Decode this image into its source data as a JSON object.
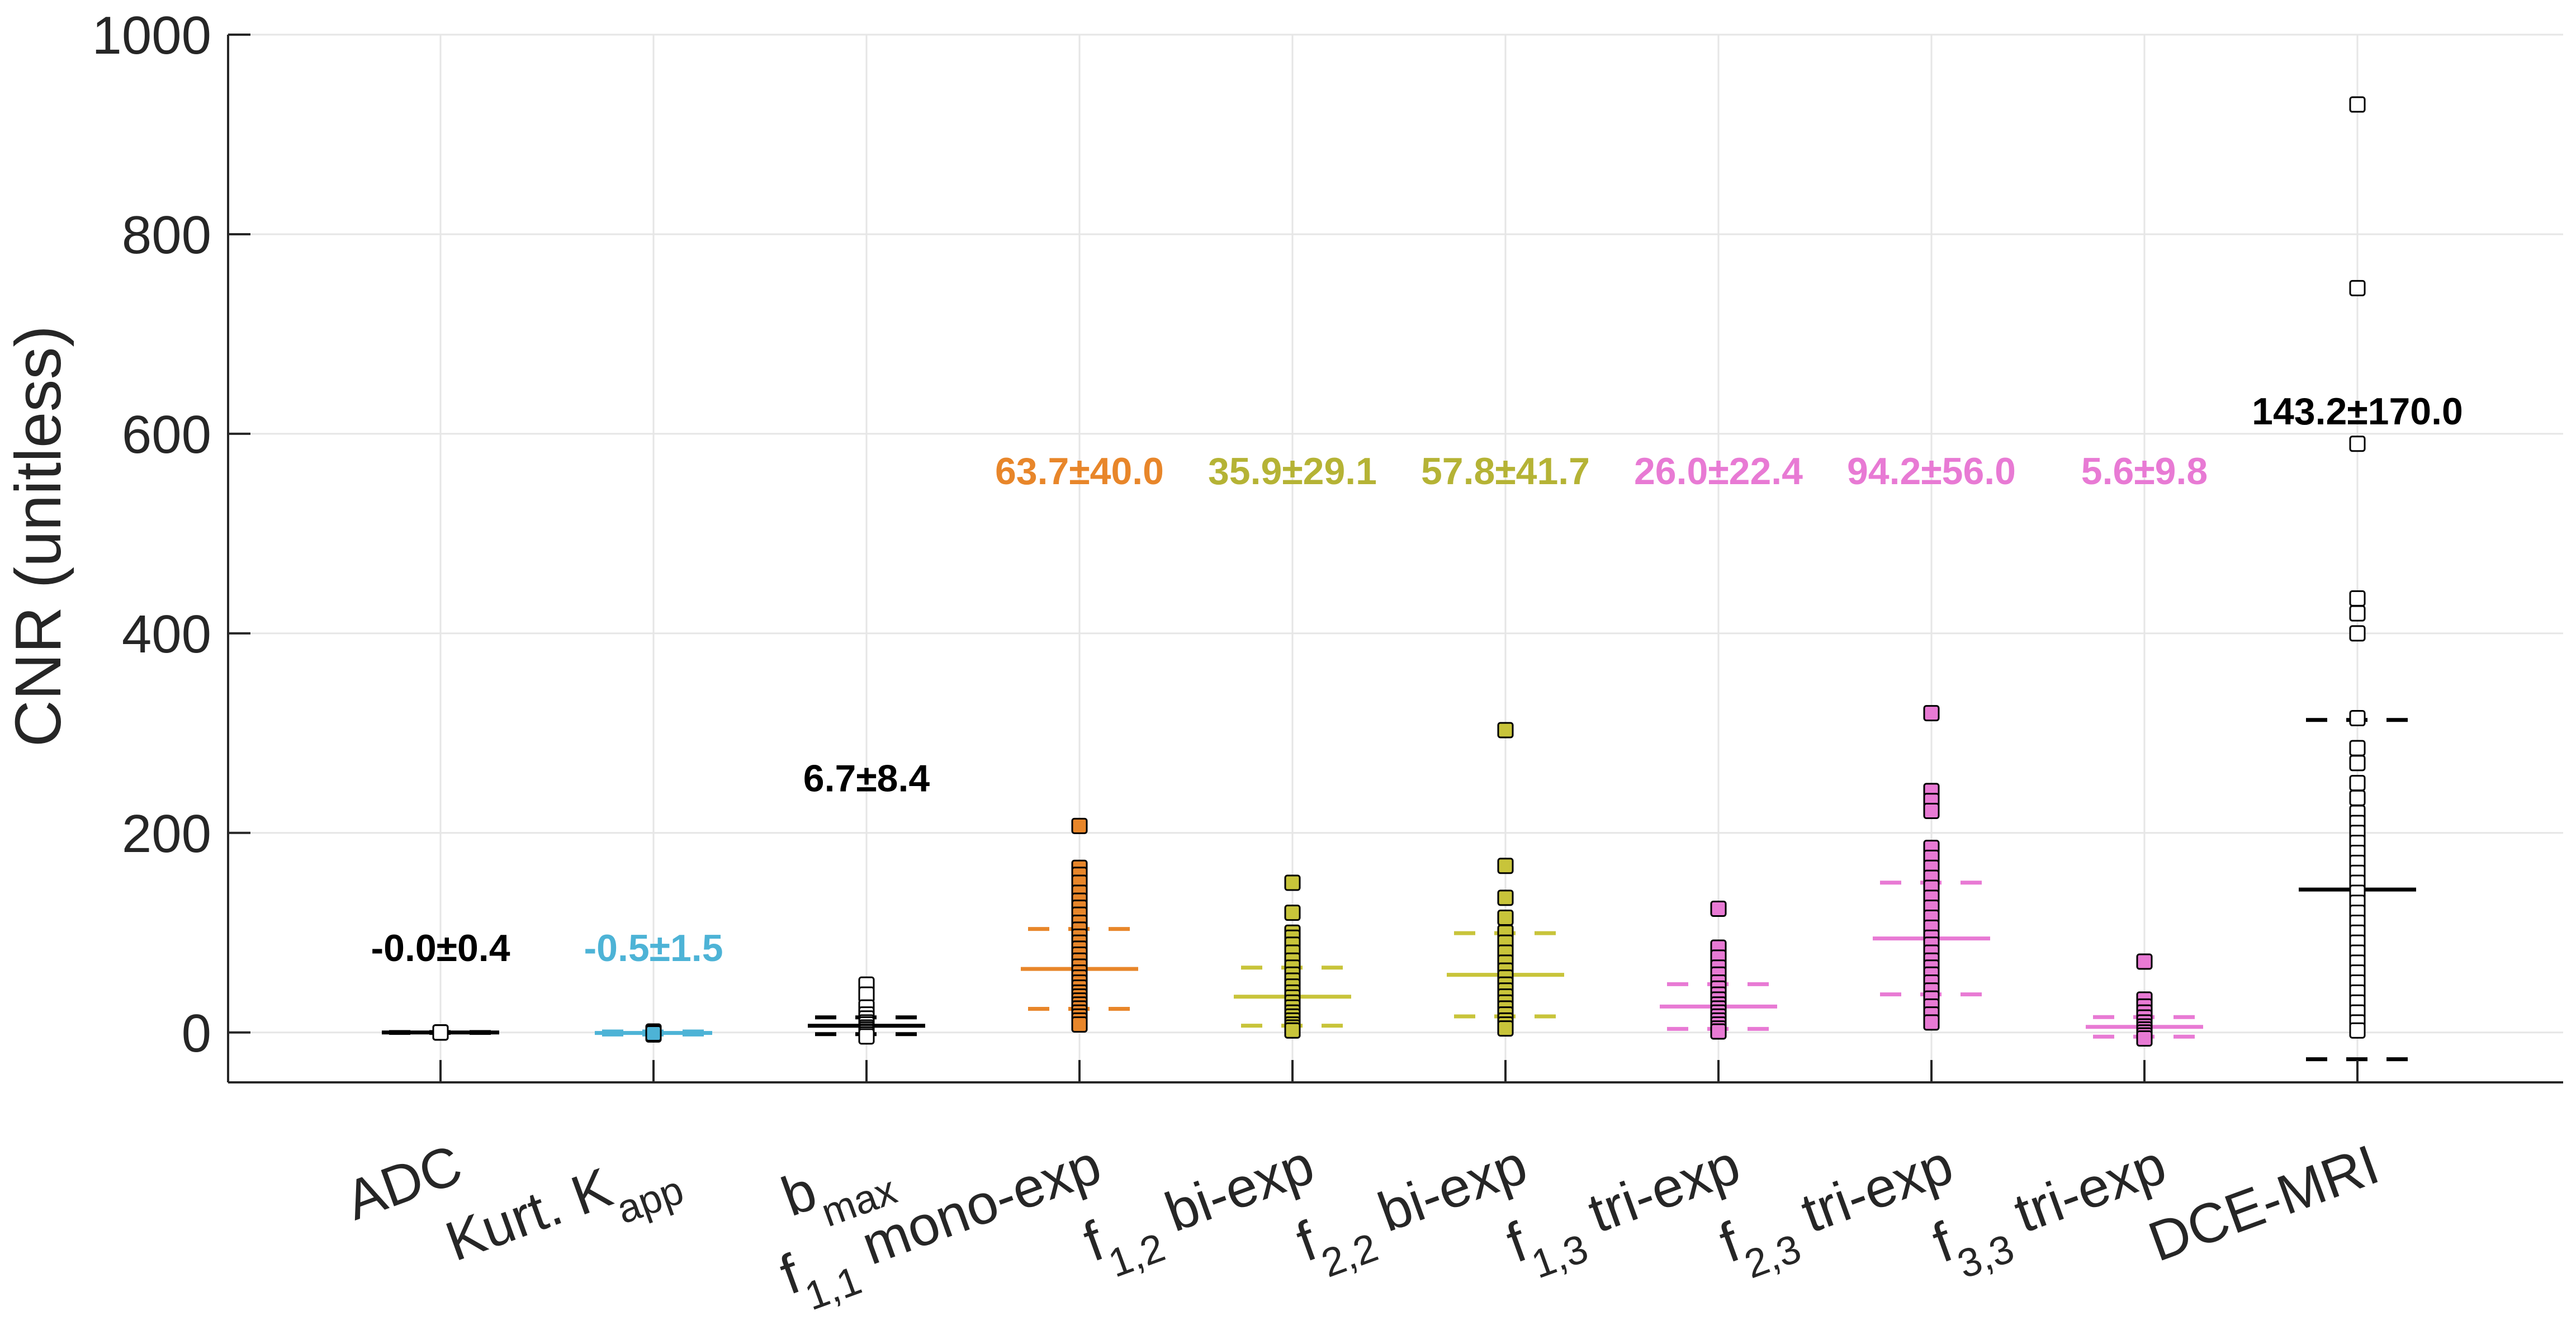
{
  "chart_data": {
    "type": "scatter",
    "title": "",
    "xlabel": "",
    "ylabel": "CNR (unitless)",
    "ylim": [
      -50,
      1000
    ],
    "yticks": [
      0,
      200,
      400,
      600,
      800,
      1000
    ],
    "grid": true,
    "categories": [
      {
        "main": "ADC",
        "sub": "",
        "tail": ""
      },
      {
        "main": "Kurt. K",
        "sub": "app",
        "tail": ""
      },
      {
        "main": "b",
        "sub": "max",
        "tail": ""
      },
      {
        "main": "f",
        "sub": "1,1",
        "tail": " mono-exp"
      },
      {
        "main": "f",
        "sub": "1,2",
        "tail": " bi-exp"
      },
      {
        "main": "f",
        "sub": "2,2",
        "tail": " bi-exp"
      },
      {
        "main": "f",
        "sub": "1,3",
        "tail": " tri-exp"
      },
      {
        "main": "f",
        "sub": "2,3",
        "tail": " tri-exp"
      },
      {
        "main": "f",
        "sub": "3,3",
        "tail": " tri-exp"
      },
      {
        "main": "DCE-MRI",
        "sub": "",
        "tail": ""
      }
    ],
    "series": [
      {
        "category": "ADC",
        "mean": 0.0,
        "sd": 0.4,
        "annotation": "-0.0±0.4",
        "annotation_y": 85,
        "color": "#000000",
        "fill": "#ffffff",
        "points": [
          0,
          0,
          0,
          0,
          0,
          0,
          0,
          0,
          0,
          0
        ]
      },
      {
        "category": "Kurt. K app",
        "mean": -0.5,
        "sd": 1.5,
        "annotation": "-0.5±1.5",
        "annotation_y": 85,
        "color": "#4db3d6",
        "fill": "#4db3d6",
        "points": [
          0,
          0,
          0,
          -1,
          -1,
          -2,
          0,
          1,
          0,
          -1
        ]
      },
      {
        "category": "b max",
        "mean": 6.7,
        "sd": 8.4,
        "annotation": "6.7±8.4",
        "annotation_y": 255,
        "color": "#000000",
        "fill": "#ffffff",
        "points": [
          48,
          38,
          25,
          18,
          14,
          10,
          8,
          5,
          3,
          1,
          0,
          -2,
          -4
        ]
      },
      {
        "category": "f 1,1 mono-exp",
        "mean": 63.7,
        "sd": 40.0,
        "annotation": "63.7±40.0",
        "annotation_y": 563,
        "color": "#e8862a",
        "fill": "#e8862a",
        "points": [
          207,
          165,
          158,
          150,
          140,
          132,
          125,
          118,
          110,
          103,
          96,
          90,
          84,
          78,
          72,
          66,
          60,
          55,
          50,
          45,
          40,
          36,
          32,
          28,
          24,
          20,
          16,
          12,
          8
        ]
      },
      {
        "category": "f 1,2 bi-exp",
        "mean": 35.9,
        "sd": 29.1,
        "annotation": "35.9±29.1",
        "annotation_y": 563,
        "color": "#c8c43a",
        "fill": "#c8c43a",
        "points": [
          150,
          120,
          100,
          95,
          88,
          80,
          72,
          65,
          58,
          52,
          46,
          40,
          35,
          30,
          25,
          20,
          16,
          12,
          8,
          5,
          2
        ]
      },
      {
        "category": "f 2,2 bi-exp",
        "mean": 57.8,
        "sd": 41.7,
        "annotation": "57.8±41.7",
        "annotation_y": 563,
        "color": "#c8c43a",
        "fill": "#c8c43a",
        "points": [
          303,
          167,
          135,
          115,
          100,
          90,
          80,
          70,
          62,
          55,
          48,
          42,
          36,
          30,
          24,
          18,
          12,
          8,
          4
        ]
      },
      {
        "category": "f 1,3 tri-exp",
        "mean": 26.0,
        "sd": 22.4,
        "annotation": "26.0±22.4",
        "annotation_y": 563,
        "color": "#e87ad4",
        "fill": "#e87ad4",
        "points": [
          124,
          85,
          75,
          65,
          58,
          50,
          44,
          38,
          33,
          28,
          24,
          20,
          16,
          12,
          8,
          4,
          1
        ]
      },
      {
        "category": "f 2,3 tri-exp",
        "mean": 94.2,
        "sd": 56.0,
        "annotation": "94.2±56.0",
        "annotation_y": 563,
        "color": "#e87ad4",
        "fill": "#e87ad4",
        "points": [
          320,
          242,
          232,
          222,
          185,
          175,
          165,
          155,
          145,
          135,
          125,
          115,
          105,
          95,
          88,
          80,
          72,
          65,
          58,
          50,
          42,
          34,
          26,
          18,
          10
        ]
      },
      {
        "category": "f 3,3 tri-exp",
        "mean": 5.6,
        "sd": 9.8,
        "annotation": "5.6±9.8",
        "annotation_y": 563,
        "color": "#e87ad4",
        "fill": "#e87ad4",
        "points": [
          71,
          33,
          26,
          20,
          15,
          10,
          6,
          3,
          0,
          -3,
          -6
        ]
      },
      {
        "category": "DCE-MRI",
        "mean": 143.2,
        "sd": 170.0,
        "annotation": "143.2±170.0",
        "annotation_y": 623,
        "color": "#000000",
        "fill": "#ffffff",
        "points": [
          930,
          746,
          590,
          435,
          420,
          400,
          315,
          285,
          270,
          250,
          235,
          220,
          210,
          200,
          190,
          180,
          170,
          160,
          150,
          140,
          130,
          120,
          110,
          100,
          90,
          80,
          70,
          60,
          50,
          40,
          30,
          20,
          10,
          2
        ]
      }
    ],
    "mean_marker": "solid horizontal line",
    "sd_marker": "dashed horizontal lines",
    "point_marker": "square"
  }
}
